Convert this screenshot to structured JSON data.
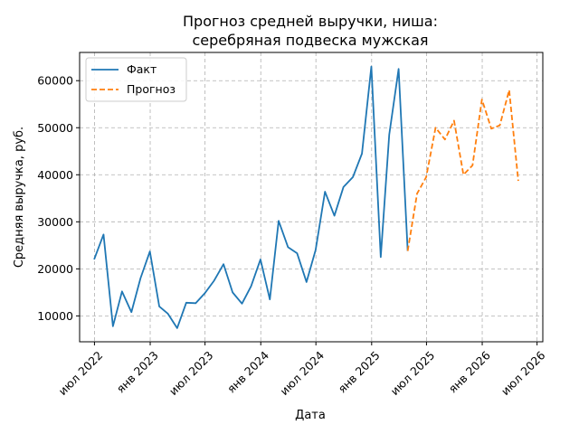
{
  "chart_data": {
    "type": "line",
    "title": "Прогноз средней выручки, ниша:\nсеребряная подвеска мужская",
    "xlabel": "Дата",
    "ylabel": "Средняя выручка, руб.",
    "ylim": [
      4500,
      66000
    ],
    "xlim": [
      "2022-05-13",
      "2026-07-20"
    ],
    "y_ticks": [
      10000,
      20000,
      30000,
      40000,
      50000,
      60000
    ],
    "x_ticks": [
      {
        "date": "2022-07-01",
        "label": "июл 2022"
      },
      {
        "date": "2023-01-01",
        "label": "янв 2023"
      },
      {
        "date": "2023-07-01",
        "label": "июл 2023"
      },
      {
        "date": "2024-01-01",
        "label": "янв 2024"
      },
      {
        "date": "2024-07-01",
        "label": "июл 2024"
      },
      {
        "date": "2025-01-01",
        "label": "янв 2025"
      },
      {
        "date": "2025-07-01",
        "label": "июл 2025"
      },
      {
        "date": "2026-01-01",
        "label": "янв 2026"
      },
      {
        "date": "2026-07-01",
        "label": "июл 2026"
      }
    ],
    "grid": true,
    "legend": "top-left",
    "series": [
      {
        "name": "Факт",
        "color": "#1f77b4",
        "style": "solid",
        "points": [
          [
            "2022-06-30",
            22000
          ],
          [
            "2022-07-31",
            27300
          ],
          [
            "2022-08-31",
            7800
          ],
          [
            "2022-09-30",
            15200
          ],
          [
            "2022-10-31",
            10800
          ],
          [
            "2022-11-30",
            18000
          ],
          [
            "2022-12-31",
            23700
          ],
          [
            "2023-01-31",
            12000
          ],
          [
            "2023-02-28",
            10500
          ],
          [
            "2023-03-31",
            7400
          ],
          [
            "2023-04-30",
            12800
          ],
          [
            "2023-05-31",
            12700
          ],
          [
            "2023-06-30",
            14800
          ],
          [
            "2023-07-31",
            17500
          ],
          [
            "2023-08-31",
            21000
          ],
          [
            "2023-09-30",
            15000
          ],
          [
            "2023-10-31",
            12600
          ],
          [
            "2023-11-30",
            16300
          ],
          [
            "2023-12-31",
            22000
          ],
          [
            "2024-01-31",
            13500
          ],
          [
            "2024-02-29",
            30200
          ],
          [
            "2024-03-31",
            24600
          ],
          [
            "2024-04-30",
            23300
          ],
          [
            "2024-05-31",
            17200
          ],
          [
            "2024-06-30",
            24000
          ],
          [
            "2024-07-31",
            36400
          ],
          [
            "2024-08-31",
            31300
          ],
          [
            "2024-09-30",
            37400
          ],
          [
            "2024-10-31",
            39500
          ],
          [
            "2024-11-30",
            44500
          ],
          [
            "2024-12-31",
            63000
          ],
          [
            "2025-01-31",
            22500
          ],
          [
            "2025-02-28",
            48500
          ],
          [
            "2025-03-31",
            62500
          ],
          [
            "2025-04-30",
            23800
          ]
        ]
      },
      {
        "name": "Прогноз",
        "color": "#ff7f0e",
        "style": "dashed",
        "points": [
          [
            "2025-04-30",
            23800
          ],
          [
            "2025-05-31",
            36000
          ],
          [
            "2025-06-30",
            39500
          ],
          [
            "2025-07-31",
            50000
          ],
          [
            "2025-08-31",
            47500
          ],
          [
            "2025-09-30",
            51500
          ],
          [
            "2025-10-31",
            40000
          ],
          [
            "2025-11-30",
            42000
          ],
          [
            "2025-12-31",
            56000
          ],
          [
            "2026-01-31",
            49800
          ],
          [
            "2026-02-28",
            50500
          ],
          [
            "2026-03-31",
            58000
          ],
          [
            "2026-04-30",
            38700
          ]
        ]
      }
    ]
  }
}
